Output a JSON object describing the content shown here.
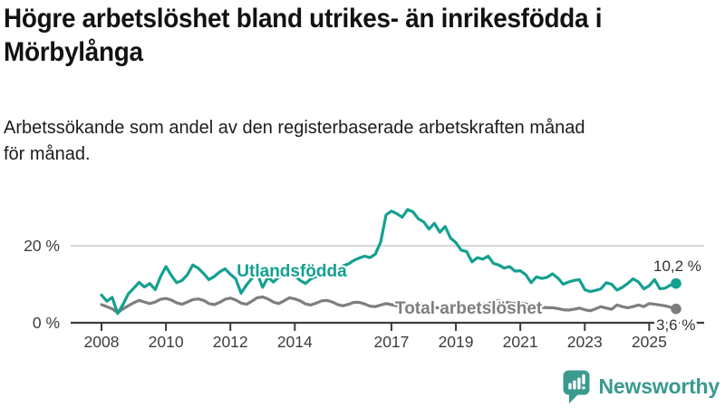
{
  "header": {
    "title_lines": [
      "Högre arbetslöshet bland utrikes- än inrikesfödda i",
      "Mörbylånga"
    ],
    "subtitle_lines": [
      "Arbetssökande som andel av den registerbaserade arbetskraften månad",
      "för månad."
    ]
  },
  "footer": {
    "brand": "Newsworthy",
    "brand_color": "#399a8e",
    "logo_icon": "bar-chart-speech-bubble-icon"
  },
  "chart_data": {
    "type": "line",
    "title": "Högre arbetslöshet bland utrikes- än inrikesfödda i Mörbylånga",
    "subtitle": "Arbetssökande som andel av den registerbaserade arbetskraften månad för månad.",
    "unit": "%",
    "grid": "y-only",
    "legend_position": "inline-labels",
    "x_start": 2008,
    "points_per_year": 6,
    "xlim": [
      2008,
      2025.83
    ],
    "ylim": [
      0,
      31
    ],
    "y_ticks": [
      {
        "value": 0,
        "label": "0 %"
      },
      {
        "value": 20,
        "label": "20 %"
      }
    ],
    "x_ticks": [
      {
        "year": 2008,
        "label": "2008"
      },
      {
        "year": 2010,
        "label": "2010"
      },
      {
        "year": 2012,
        "label": "2012"
      },
      {
        "year": 2014,
        "label": "2014"
      },
      {
        "year": 2017,
        "label": "2017"
      },
      {
        "year": 2019,
        "label": "2019"
      },
      {
        "year": 2021,
        "label": "2021"
      },
      {
        "year": 2023,
        "label": "2023"
      },
      {
        "year": 2025,
        "label": "2025"
      }
    ],
    "series": [
      {
        "name": "Utlandsfödda",
        "color": "#14A091",
        "end_label": "10,2 %",
        "last_value": 10.2,
        "values": [
          7.2,
          5.6,
          6.6,
          2.4,
          4.7,
          7.5,
          9.0,
          10.5,
          9.3,
          10.2,
          8.6,
          12.0,
          14.6,
          12.3,
          10.4,
          11.0,
          12.5,
          15.0,
          14.2,
          12.8,
          11.2,
          12.0,
          13.2,
          14.0,
          12.6,
          11.4,
          7.7,
          9.8,
          11.5,
          12.8,
          9.2,
          11.8,
          10.6,
          11.8,
          12.4,
          13.4,
          12.2,
          11.0,
          10.2,
          11.4,
          12.0,
          12.6,
          13.0,
          12.2,
          13.6,
          14.8,
          15.3,
          16.2,
          16.8,
          17.3,
          16.9,
          17.8,
          21.0,
          28.0,
          29.0,
          28.3,
          27.4,
          29.4,
          28.8,
          27.0,
          26.2,
          24.3,
          25.8,
          23.5,
          25.0,
          22.0,
          20.8,
          18.8,
          18.5,
          15.8,
          16.9,
          16.5,
          17.3,
          15.4,
          15.0,
          14.2,
          14.6,
          13.4,
          13.5,
          12.5,
          10.4,
          11.9,
          11.5,
          11.8,
          12.7,
          11.6,
          10.0,
          10.6,
          11.0,
          11.2,
          8.6,
          8.1,
          8.4,
          8.8,
          10.4,
          10.0,
          8.5,
          9.2,
          10.2,
          11.4,
          10.6,
          8.8,
          9.6,
          11.2,
          8.8,
          9.0,
          9.8,
          10.2
        ]
      },
      {
        "name": "Total arbetslöshet",
        "color": "#7E7E7E",
        "end_label": "3,6 %",
        "last_value": 3.6,
        "values": [
          4.7,
          4.2,
          3.6,
          2.6,
          3.6,
          4.4,
          5.2,
          5.8,
          5.4,
          5.0,
          5.4,
          6.1,
          6.3,
          5.9,
          5.2,
          4.8,
          5.4,
          6.0,
          6.2,
          5.8,
          5.0,
          4.7,
          5.3,
          6.1,
          6.4,
          5.9,
          5.1,
          4.8,
          5.6,
          6.5,
          6.7,
          6.2,
          5.4,
          5.0,
          5.7,
          6.5,
          6.2,
          5.7,
          4.9,
          4.6,
          5.1,
          5.7,
          5.8,
          5.4,
          4.7,
          4.4,
          4.8,
          5.3,
          5.3,
          4.9,
          4.3,
          4.2,
          4.6,
          5.0,
          4.7,
          4.4,
          4.0,
          3.9,
          4.3,
          4.9,
          4.8,
          4.5,
          4.0,
          3.8,
          4.2,
          4.7,
          4.6,
          4.3,
          3.9,
          3.8,
          4.2,
          4.8,
          5.0,
          5.5,
          5.8,
          5.4,
          5.2,
          5.0,
          5.2,
          4.9,
          4.5,
          4.2,
          4.0,
          3.9,
          3.9,
          3.7,
          3.4,
          3.3,
          3.5,
          3.8,
          3.4,
          3.1,
          3.6,
          4.2,
          3.8,
          3.5,
          4.6,
          4.2,
          3.9,
          4.2,
          4.6,
          4.2,
          5.0,
          4.8,
          4.6,
          4.4,
          4.0,
          3.6
        ]
      }
    ]
  }
}
